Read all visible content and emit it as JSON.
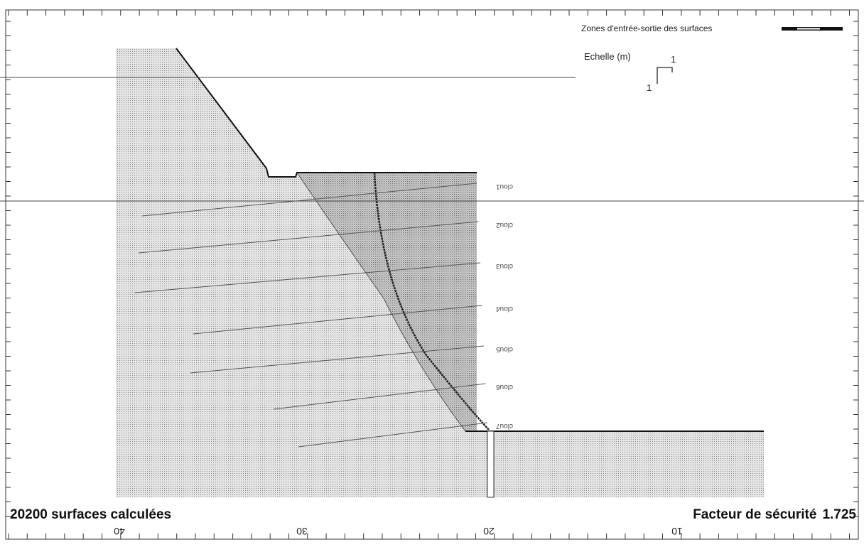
{
  "legend": {
    "label": "Zones d'entrée-sortie des surfaces"
  },
  "scale": {
    "title": "Echelle (m)",
    "x_label": "1",
    "y_label": "1"
  },
  "nails": [
    "clou1",
    "clou2",
    "clou3",
    "clou4",
    "clou5",
    "clou6",
    "clou7"
  ],
  "axis": {
    "labels": [
      "40",
      "30",
      "20",
      "10"
    ]
  },
  "footer": {
    "surfaces": "20200 surfaces calculées",
    "safety_factor_label": "Facteur de sécurité",
    "safety_factor": 1.725
  }
}
